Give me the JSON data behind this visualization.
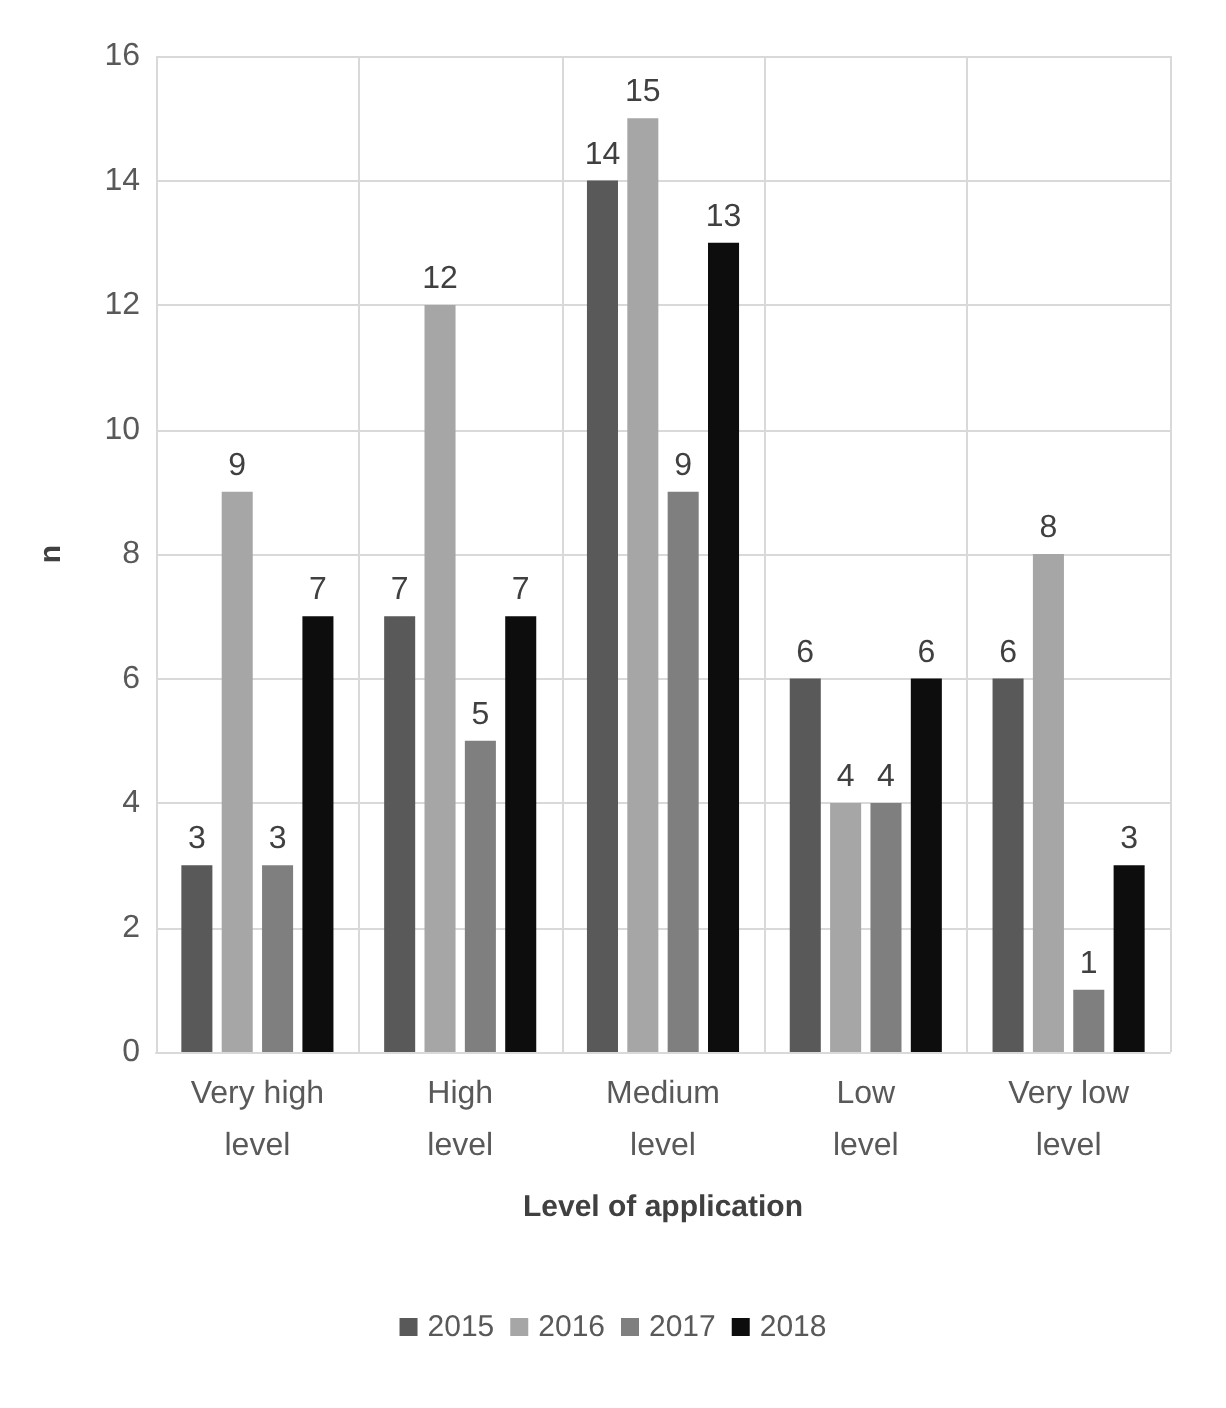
{
  "chart_data": {
    "type": "bar",
    "xlabel": "Level of application",
    "ylabel": "n",
    "categories": [
      "Very high level",
      "High level",
      "Medium level",
      "Low level",
      "Very low level"
    ],
    "series": [
      {
        "name": "2015",
        "color": "#595959",
        "values": [
          3,
          7,
          14,
          6,
          6
        ]
      },
      {
        "name": "2016",
        "color": "#a6a6a6",
        "values": [
          9,
          12,
          15,
          4,
          8
        ]
      },
      {
        "name": "2017",
        "color": "#7f7f7f",
        "values": [
          3,
          5,
          9,
          4,
          1
        ]
      },
      {
        "name": "2018",
        "color": "#0d0d0d",
        "values": [
          7,
          7,
          13,
          6,
          3
        ]
      }
    ],
    "ylim": [
      0,
      16
    ],
    "yticks": [
      0,
      2,
      4,
      6,
      8,
      10,
      12,
      14,
      16
    ],
    "grid": true,
    "legend": "bottom",
    "data_labels": true
  }
}
